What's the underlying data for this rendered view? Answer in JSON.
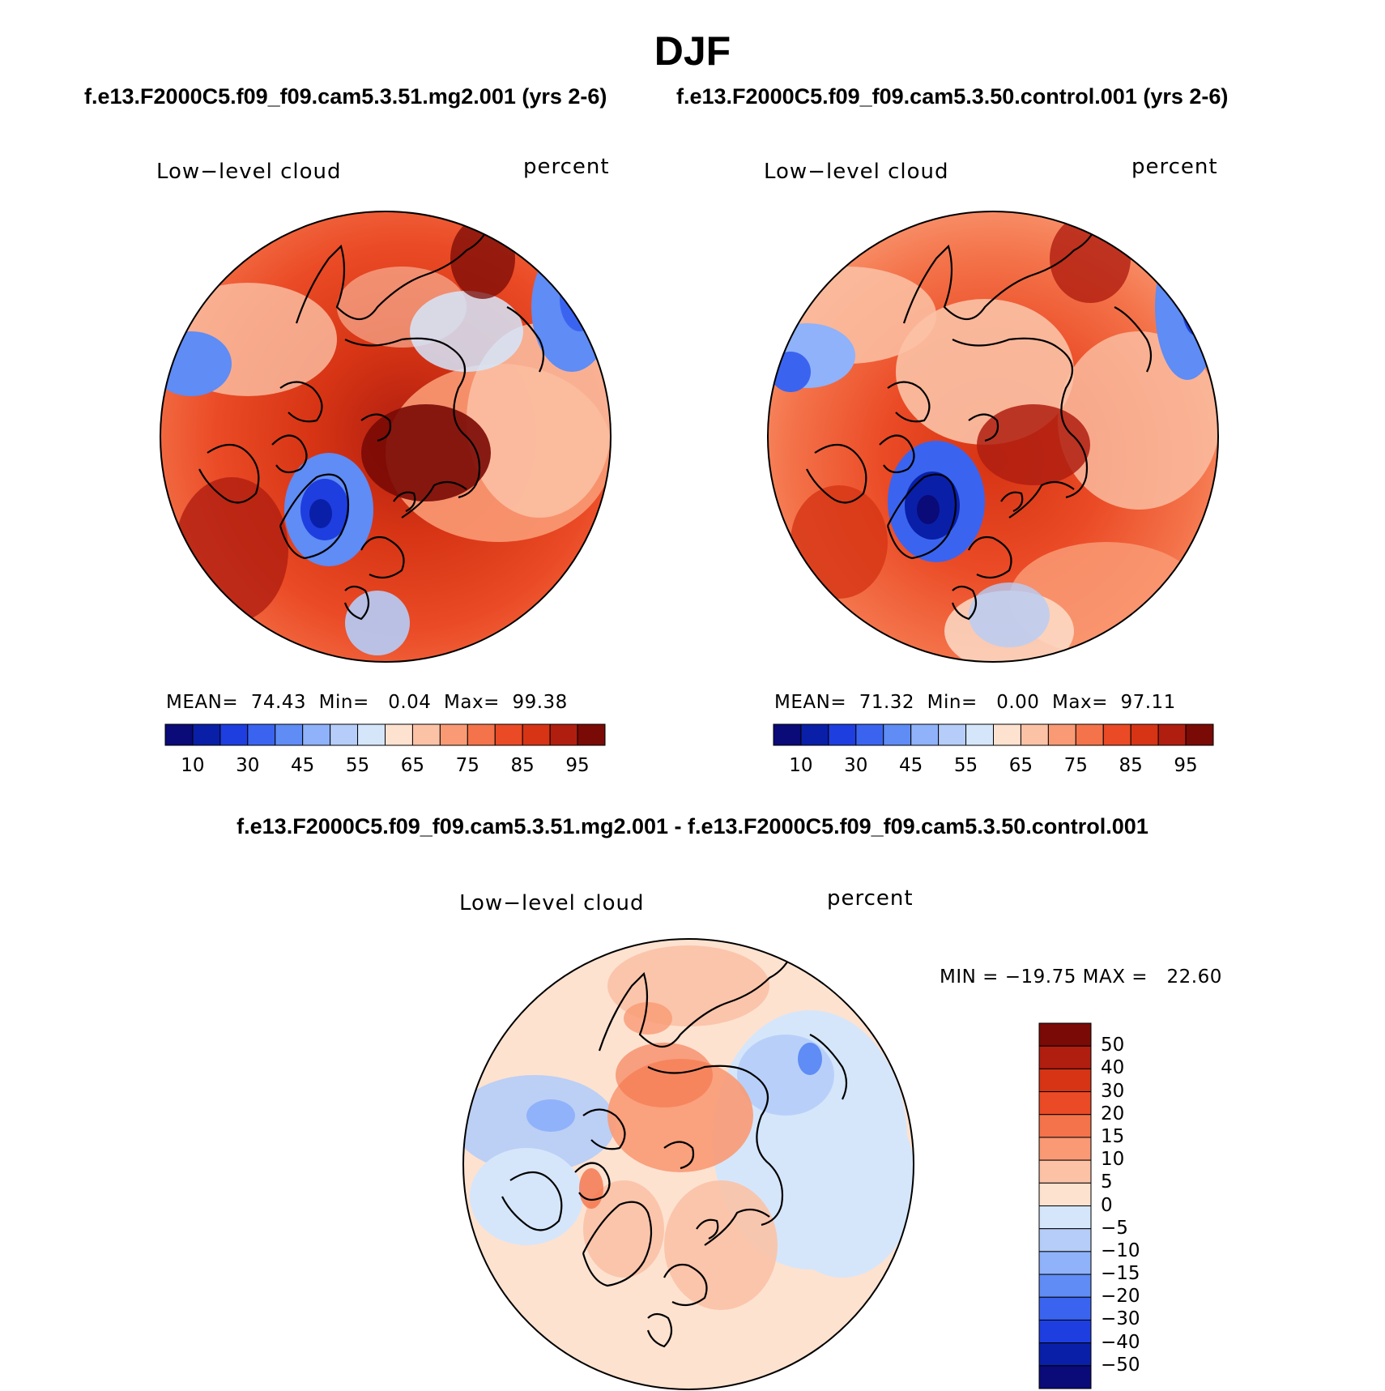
{
  "figure": {
    "title": "DJF",
    "case1_title": "f.e13.F2000C5.f09_f09.cam5.3.51.mg2.001 (yrs 2-6)",
    "case2_title": "f.e13.F2000C5.f09_f09.cam5.3.50.control.001 (yrs 2-6)",
    "diff_title": "f.e13.F2000C5.f09_f09.cam5.3.51.mg2.001 - f.e13.F2000C5.f09_f09.cam5.3.50.control.001"
  },
  "panels": [
    {
      "variable": "Low−level cloud",
      "units": "percent",
      "stats": "MEAN=  74.43  Min=   0.04  Max=  99.38",
      "projection": "north polar stereographic"
    },
    {
      "variable": "Low−level cloud",
      "units": "percent",
      "stats": "MEAN=  71.32  Min=   0.00  Max=  97.11",
      "projection": "north polar stereographic"
    },
    {
      "variable": "Low−level cloud",
      "units": "percent",
      "stats": "MIN = −19.75 MAX =   22.60",
      "projection": "north polar stereographic"
    }
  ],
  "colorbar_abs": {
    "colors": [
      "#0a0a78",
      "#0a1fa8",
      "#1e3ee0",
      "#3a64f0",
      "#5f8cf5",
      "#8fb2fa",
      "#b5cdf8",
      "#d5e6fb",
      "#fde2d0",
      "#fbc2a6",
      "#f99a74",
      "#f4734a",
      "#ea4a25",
      "#d63414",
      "#b01e10",
      "#7a0a05"
    ],
    "labels": [
      "10",
      "30",
      "45",
      "55",
      "65",
      "75",
      "85",
      "95"
    ]
  },
  "colorbar_diff": {
    "colors": [
      "#7a0a05",
      "#b01e10",
      "#d63414",
      "#ea4a25",
      "#f4734a",
      "#f99a74",
      "#fbc2a6",
      "#fde2d0",
      "#d5e6fb",
      "#b5cdf8",
      "#8fb2fa",
      "#5f8cf5",
      "#3a64f0",
      "#1e3ee0",
      "#0a1fa8",
      "#0a0a78"
    ],
    "labels": [
      "50",
      "40",
      "30",
      "20",
      "15",
      "10",
      "5",
      "0",
      "−5",
      "−10",
      "−15",
      "−20",
      "−30",
      "−40",
      "−50"
    ]
  }
}
